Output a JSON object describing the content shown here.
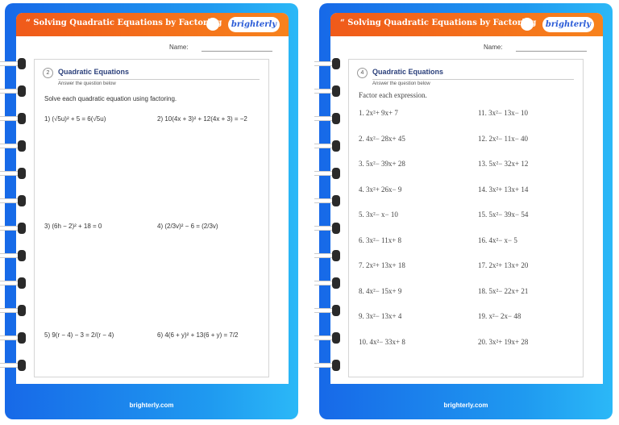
{
  "left": {
    "header_title": "“ Solving Quadratic Equations by Factoring",
    "logo": "brighterly",
    "name_label": "Name:",
    "section_number": "2",
    "section_title": "Quadratic Equations",
    "section_subtitle": "Answer the question below",
    "instruction": "Solve each quadratic equation using factoring.",
    "problems": [
      "1)  (√5u)² + 5 = 6(√5u)",
      "2)  10(4x + 3)² + 12(4x + 3) = −2",
      "3)  (6h − 2)² + 18 = 0",
      "4)  (2/3v)² − 6 = (2/3v)",
      "5)  9(r − 4) − 3 = 2/(r − 4)",
      "6)  4(6 + y)² + 13(6 + y) = 7/2"
    ],
    "footer": "brighterly.com"
  },
  "right": {
    "header_title": "“ Solving Quadratic Equations by Factoring",
    "logo": "brighterly",
    "name_label": "Name:",
    "section_number": "4",
    "section_title": "Quadratic Equations",
    "section_subtitle": "Answer the question below",
    "instruction": "Factor each expression.",
    "problems": [
      "1. 2x²+ 9x+ 7",
      "2. 4x²− 28x+ 45",
      "3. 5x²− 39x+ 28",
      "4. 3x²+ 26x− 9",
      "5. 3x²− x− 10",
      "6. 3x²− 11x+ 8",
      "7. 2x²+ 13x+ 18",
      "8. 4x²− 15x+ 9",
      "9. 3x²− 13x+ 4",
      "10. 4x²− 33x+ 8",
      "11. 3x²− 13x− 10",
      "12. 2x²− 11x− 40",
      "13. 5x²− 32x+ 12",
      "14. 3x²+ 13x+ 14",
      "15. 5x²− 39x− 54",
      "16. 4x²− x− 5",
      "17. 2x²+ 13x+ 20",
      "18. 5x²− 22x+ 21",
      "19. x²− 2x− 48",
      "20. 3x²+ 19x+ 28"
    ],
    "footer": "brighterly.com"
  },
  "colors": {
    "frame": "#1f8ef0",
    "header": "#f26a1b",
    "title": "#2a3f7a"
  }
}
